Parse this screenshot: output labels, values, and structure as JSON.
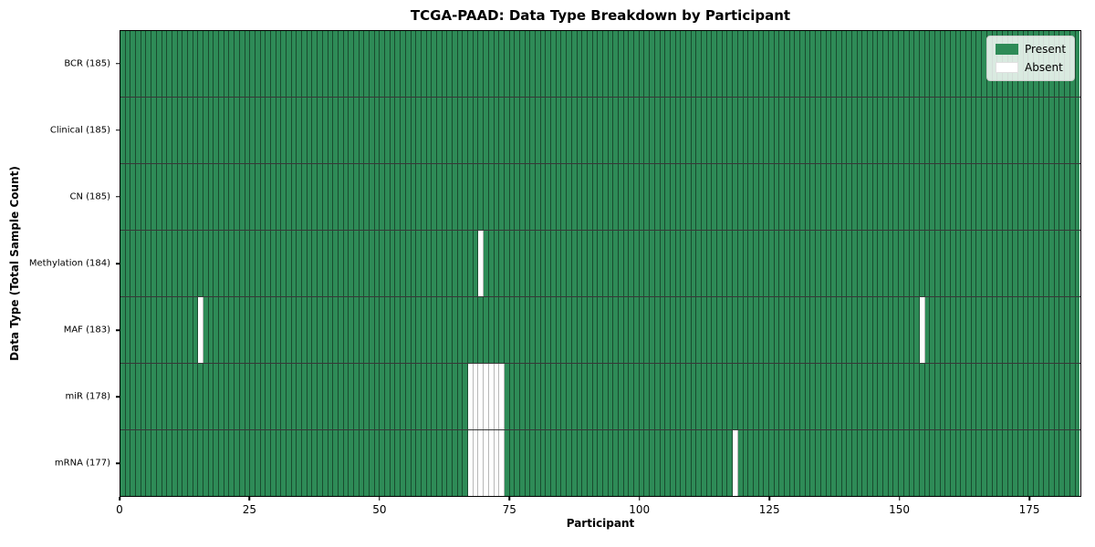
{
  "chart_data": {
    "type": "heatmap",
    "title": "TCGA-PAAD: Data Type Breakdown by Participant",
    "xlabel": "Participant",
    "ylabel": "Data Type (Total Sample Count)",
    "n_participants": 185,
    "xlim": [
      0,
      185
    ],
    "x_ticks": [
      0,
      25,
      50,
      75,
      100,
      125,
      150,
      175
    ],
    "rows": [
      {
        "data_type": "BCR",
        "label": "BCR (185)",
        "total_samples": 185,
        "absent_participants": []
      },
      {
        "data_type": "Clinical",
        "label": "Clinical (185)",
        "total_samples": 185,
        "absent_participants": []
      },
      {
        "data_type": "CN",
        "label": "CN (185)",
        "total_samples": 185,
        "absent_participants": []
      },
      {
        "data_type": "Methylation",
        "label": "Methylation (184)",
        "total_samples": 184,
        "absent_participants": [
          69
        ]
      },
      {
        "data_type": "MAF",
        "label": "MAF (183)",
        "total_samples": 183,
        "absent_participants": [
          15,
          154
        ]
      },
      {
        "data_type": "miR",
        "label": "miR (178)",
        "total_samples": 178,
        "absent_participants": [
          67,
          68,
          69,
          70,
          71,
          72,
          73
        ]
      },
      {
        "data_type": "mRNA",
        "label": "mRNA (177)",
        "total_samples": 177,
        "absent_participants": [
          67,
          68,
          69,
          70,
          71,
          72,
          73,
          118
        ]
      }
    ],
    "legend": {
      "position": "upper right",
      "entries": [
        {
          "label": "Present",
          "color": "#2e8b57"
        },
        {
          "label": "Absent",
          "color": "#ffffff"
        }
      ]
    },
    "colors": {
      "present": "#2e8b57",
      "absent": "#ffffff"
    },
    "grid": "per-cell black borders, black row separators, black axes spines"
  }
}
